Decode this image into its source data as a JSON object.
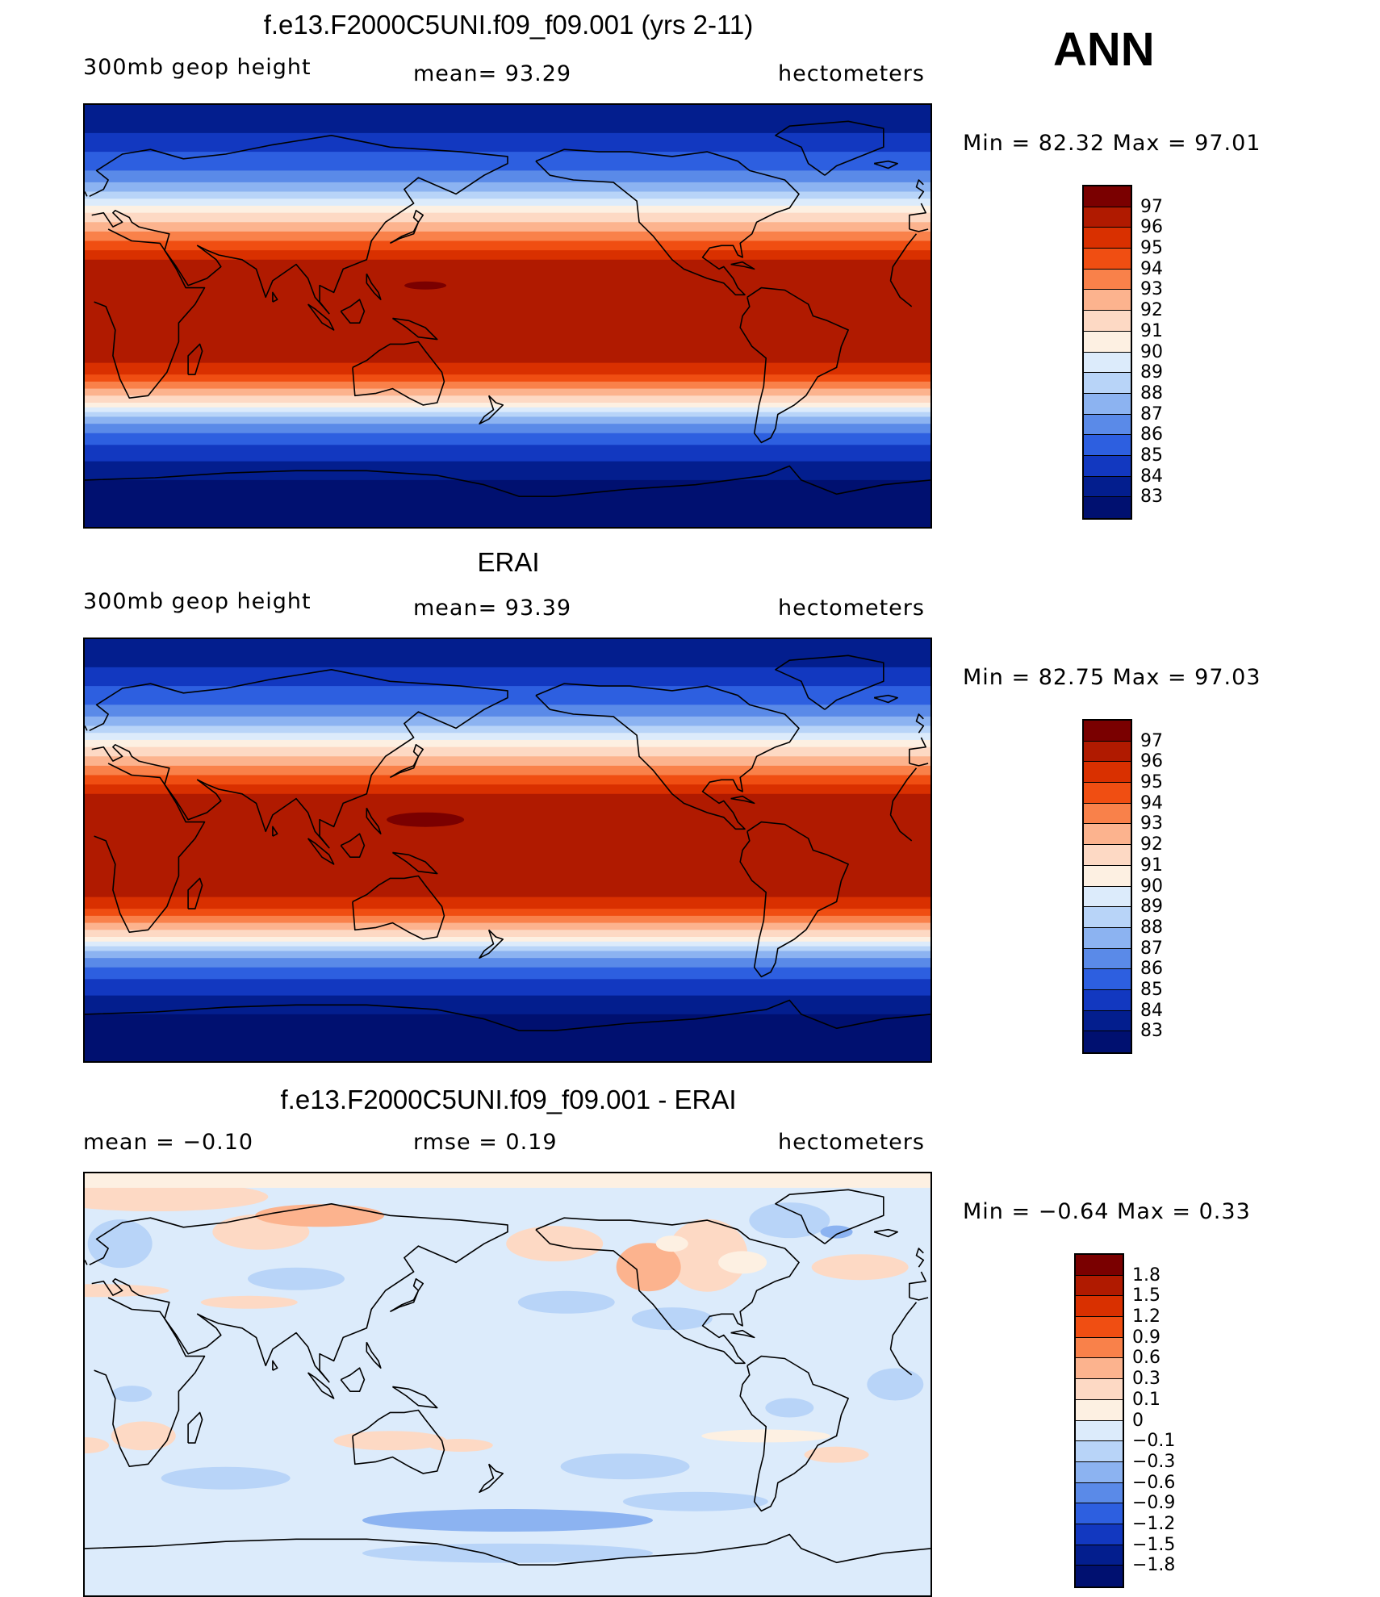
{
  "season": "ANN",
  "chart_data": [
    {
      "type": "heatmap",
      "title": "f.e13.F2000C5UNI.f09_f09.001 (yrs 2-11)",
      "variable": "300mb geop height",
      "stat_text": "mean=   93.29",
      "mean": 93.29,
      "units": "hectometers",
      "minmax_text": "Min =   82.32  Max =   97.01",
      "min": 82.32,
      "max": 97.01,
      "levels": [
        "97",
        "96",
        "95",
        "94",
        "93",
        "92",
        "91",
        "90",
        "89",
        "88",
        "87",
        "86",
        "85",
        "84",
        "83"
      ],
      "colors": [
        "#7a0000",
        "#b01a00",
        "#d93000",
        "#f04e12",
        "#f9814a",
        "#fcb38e",
        "#fdd9c4",
        "#fdf0e2",
        "#dcebfb",
        "#b8d4f8",
        "#8cb3f1",
        "#5a8ae8",
        "#2d5fe0",
        "#1238c0",
        "#031e8e",
        "#001070"
      ]
    },
    {
      "type": "heatmap",
      "title": "ERAI",
      "variable": "300mb geop height",
      "stat_text": "mean=   93.39",
      "mean": 93.39,
      "units": "hectometers",
      "minmax_text": "Min =   82.75  Max =   97.03",
      "min": 82.75,
      "max": 97.03,
      "levels": [
        "97",
        "96",
        "95",
        "94",
        "93",
        "92",
        "91",
        "90",
        "89",
        "88",
        "87",
        "86",
        "85",
        "84",
        "83"
      ],
      "colors": [
        "#7a0000",
        "#b01a00",
        "#d93000",
        "#f04e12",
        "#f9814a",
        "#fcb38e",
        "#fdd9c4",
        "#fdf0e2",
        "#dcebfb",
        "#b8d4f8",
        "#8cb3f1",
        "#5a8ae8",
        "#2d5fe0",
        "#1238c0",
        "#031e8e",
        "#001070"
      ]
    },
    {
      "type": "heatmap",
      "title": "f.e13.F2000C5UNI.f09_f09.001 - ERAI",
      "mean_text": "mean =   −0.10",
      "mean": -0.1,
      "rmse_text": "rmse =    0.19",
      "rmse": 0.19,
      "units": "hectometers",
      "minmax_text": "Min =   −0.64  Max =    0.33",
      "min": -0.64,
      "max": 0.33,
      "levels": [
        "1.8",
        "1.5",
        "1.2",
        "0.9",
        "0.6",
        "0.3",
        "0.1",
        "0",
        "−0.1",
        "−0.3",
        "−0.6",
        "−0.9",
        "−1.2",
        "−1.5",
        "−1.8"
      ],
      "colors": [
        "#7a0000",
        "#b01a00",
        "#d93000",
        "#f04e12",
        "#f9814a",
        "#fcb38e",
        "#fdd9c4",
        "#fdf0e2",
        "#dcebfb",
        "#b8d4f8",
        "#8cb3f1",
        "#5a8ae8",
        "#2d5fe0",
        "#1238c0",
        "#031e8e",
        "#001070"
      ]
    }
  ]
}
